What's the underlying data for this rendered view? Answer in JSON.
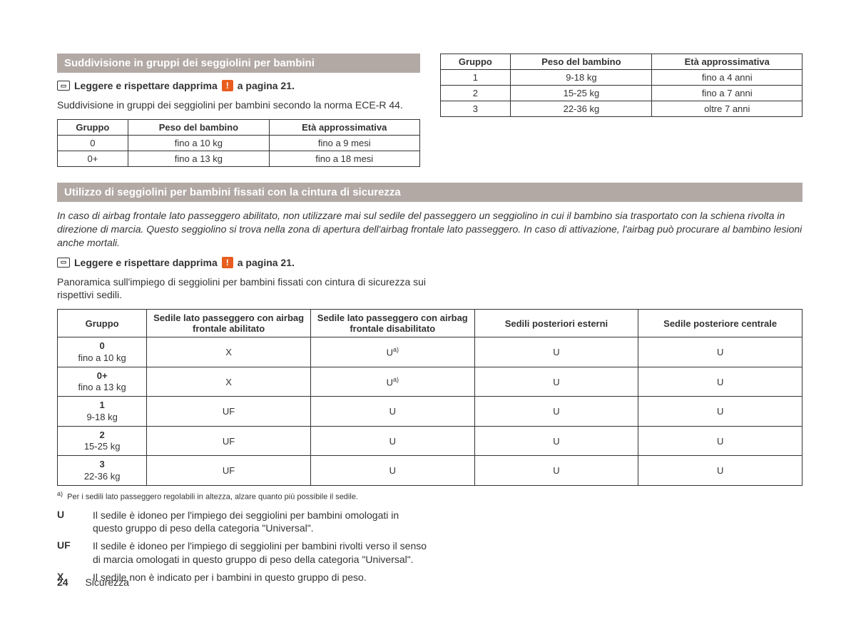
{
  "section1": {
    "title": "Suddivisione in gruppi dei seggiolini per bambini",
    "read_prefix": "Leggere e rispettare dapprima",
    "read_suffix": "a pagina 21.",
    "intro": "Suddivisione in gruppi dei seggiolini per bambini secondo la norma ECE-R 44."
  },
  "group_table_headers": {
    "group": "Gruppo",
    "weight": "Peso del bambino",
    "age": "Età approssimativa"
  },
  "group_table_left": [
    {
      "g": "0",
      "w": "fino a 10 kg",
      "a": "fino a 9 mesi"
    },
    {
      "g": "0+",
      "w": "fino a 13 kg",
      "a": "fino a 18 mesi"
    }
  ],
  "group_table_right": [
    {
      "g": "1",
      "w": "9-18 kg",
      "a": "fino a 4 anni"
    },
    {
      "g": "2",
      "w": "15-25 kg",
      "a": "fino a 7 anni"
    },
    {
      "g": "3",
      "w": "22-36 kg",
      "a": "oltre 7 anni"
    }
  ],
  "section2": {
    "title": "Utilizzo di seggiolini per bambini fissati con la cintura di sicurezza",
    "warning": "In caso di airbag frontale lato passeggero abilitato, non utilizzare mai sul sedile del passeggero un seggiolino in cui il bambino sia trasportato con la schiena rivolta in direzione di marcia. Questo seggiolino si trova nella zona di apertura dell'airbag frontale lato passeggero. In caso di attivazione, l'airbag può procurare al bambino lesioni anche mortali.",
    "read_prefix": "Leggere e rispettare dapprima",
    "read_suffix": "a pagina 21.",
    "intro": "Panoramica sull'impiego di seggiolini per bambini fissati con cintura di sicurezza sui rispettivi sedili."
  },
  "seat_headers": {
    "group": "Gruppo",
    "front_enabled": "Sedile lato passeggero con airbag frontale abilitato",
    "front_disabled": "Sedile lato passeggero con airbag frontale disabilitato",
    "rear_outer": "Sedili posteriori esterni",
    "rear_center": "Sedile posteriore centrale"
  },
  "seat_rows": [
    {
      "g": "0",
      "gsub": "fino a 10 kg",
      "c1": "X",
      "c2": "U",
      "c2sup": "a)",
      "c3": "U",
      "c4": "U"
    },
    {
      "g": "0+",
      "gsub": "fino a 13 kg",
      "c1": "X",
      "c2": "U",
      "c2sup": "a)",
      "c3": "U",
      "c4": "U"
    },
    {
      "g": "1",
      "gsub": "9-18 kg",
      "c1": "UF",
      "c2": "U",
      "c2sup": "",
      "c3": "U",
      "c4": "U"
    },
    {
      "g": "2",
      "gsub": "15-25 kg",
      "c1": "UF",
      "c2": "U",
      "c2sup": "",
      "c3": "U",
      "c4": "U"
    },
    {
      "g": "3",
      "gsub": "22-36 kg",
      "c1": "UF",
      "c2": "U",
      "c2sup": "",
      "c3": "U",
      "c4": "U"
    }
  ],
  "footnote": {
    "marker": "a)",
    "text": "Per i sedili lato passeggero regolabili in altezza, alzare quanto più possibile il sedile."
  },
  "legend": [
    {
      "key": "U",
      "text": "Il sedile è idoneo per l'impiego dei seggiolini per bambini omologati in questo gruppo di peso della categoria \"Universal\"."
    },
    {
      "key": "UF",
      "text": "Il sedile è idoneo per l'impiego di seggiolini per bambini rivolti verso il senso di marcia omologati in questo gruppo di peso della categoria \"Universal\"."
    },
    {
      "key": "X",
      "text": "Il sedile non è indicato per i bambini in questo gruppo di peso."
    }
  ],
  "footer": {
    "page_number": "24",
    "section_name": "Sicurezza"
  },
  "icons": {
    "warn": "!"
  }
}
